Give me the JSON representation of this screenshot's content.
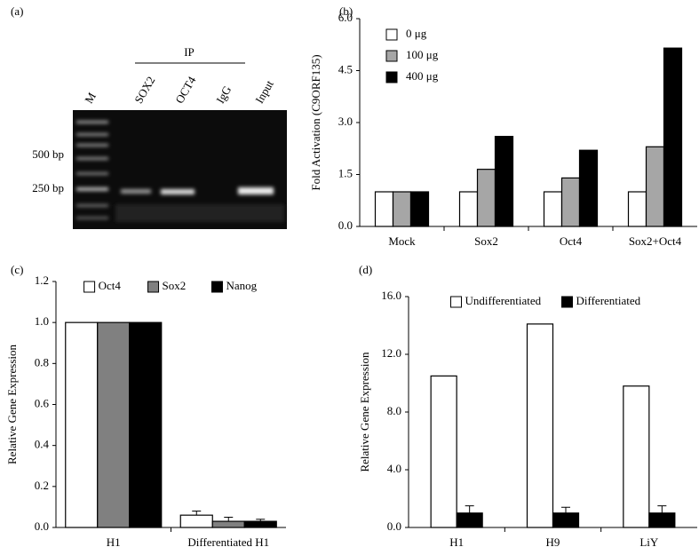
{
  "chart_data": [
    {
      "type": "gel",
      "panel_label": "(a)",
      "group_label": "IP",
      "lanes": [
        "M",
        "SOX2",
        "OCT4",
        "IgG",
        "Input"
      ],
      "markers": [
        "500 bp",
        "250 bp"
      ]
    },
    {
      "type": "bar",
      "panel_label": "(b)",
      "ylabel": "Fold Activation (C9ORF135)",
      "categories": [
        "Mock",
        "Sox2",
        "Oct4",
        "Sox2+Oct4"
      ],
      "series": [
        {
          "name": "0 μg",
          "color": "#ffffff",
          "values": [
            1.0,
            1.0,
            1.0,
            1.0
          ]
        },
        {
          "name": "100 μg",
          "color": "#a6a6a6",
          "values": [
            1.0,
            1.65,
            1.4,
            2.3
          ]
        },
        {
          "name": "400 μg",
          "color": "#000000",
          "values": [
            1.0,
            2.6,
            2.2,
            5.15
          ]
        }
      ],
      "ylim": [
        0,
        6
      ],
      "yticks": [
        {
          "value": 0,
          "label": "0.0"
        },
        {
          "value": 1.5,
          "label": "1.5"
        },
        {
          "value": 3,
          "label": "3.0"
        },
        {
          "value": 4.5,
          "label": "4.5"
        },
        {
          "value": 6,
          "label": "6.0"
        }
      ],
      "legend": "upper left"
    },
    {
      "type": "bar",
      "panel_label": "(c)",
      "ylabel": "Relative Gene Expression",
      "categories": [
        "H1",
        "Differentiated H1"
      ],
      "series": [
        {
          "name": "Oct4",
          "color": "#ffffff",
          "values": [
            1.0,
            0.06
          ],
          "errors": [
            null,
            0.02
          ]
        },
        {
          "name": "Sox2",
          "color": "#808080",
          "values": [
            1.0,
            0.03
          ],
          "errors": [
            null,
            0.02
          ]
        },
        {
          "name": "Nanog",
          "color": "#000000",
          "values": [
            1.0,
            0.03
          ],
          "errors": [
            null,
            0.01
          ]
        }
      ],
      "ylim": [
        0,
        1.2
      ],
      "yticks": [
        {
          "value": 0,
          "label": "0.0"
        },
        0.2,
        0.4,
        0.6,
        0.8,
        {
          "value": 1,
          "label": "1.0"
        },
        1.2
      ],
      "legend": "top"
    },
    {
      "type": "bar",
      "panel_label": "(d)",
      "ylabel": "Relative Gene Expression",
      "categories": [
        "H1",
        "H9",
        "LiY"
      ],
      "series": [
        {
          "name": "Undifferentiated",
          "color": "#ffffff",
          "values": [
            10.5,
            14.1,
            9.8
          ]
        },
        {
          "name": "Differentiated",
          "color": "#000000",
          "values": [
            1.0,
            1.0,
            1.0
          ],
          "errors": [
            0.5,
            0.4,
            0.5
          ]
        }
      ],
      "ylim": [
        0,
        16
      ],
      "yticks": [
        {
          "value": 0,
          "label": "0.0"
        },
        {
          "value": 4,
          "label": "4.0"
        },
        {
          "value": 8,
          "label": "8.0"
        },
        {
          "value": 12,
          "label": "12.0"
        },
        {
          "value": 16,
          "label": "16.0"
        }
      ],
      "legend": "top"
    }
  ]
}
